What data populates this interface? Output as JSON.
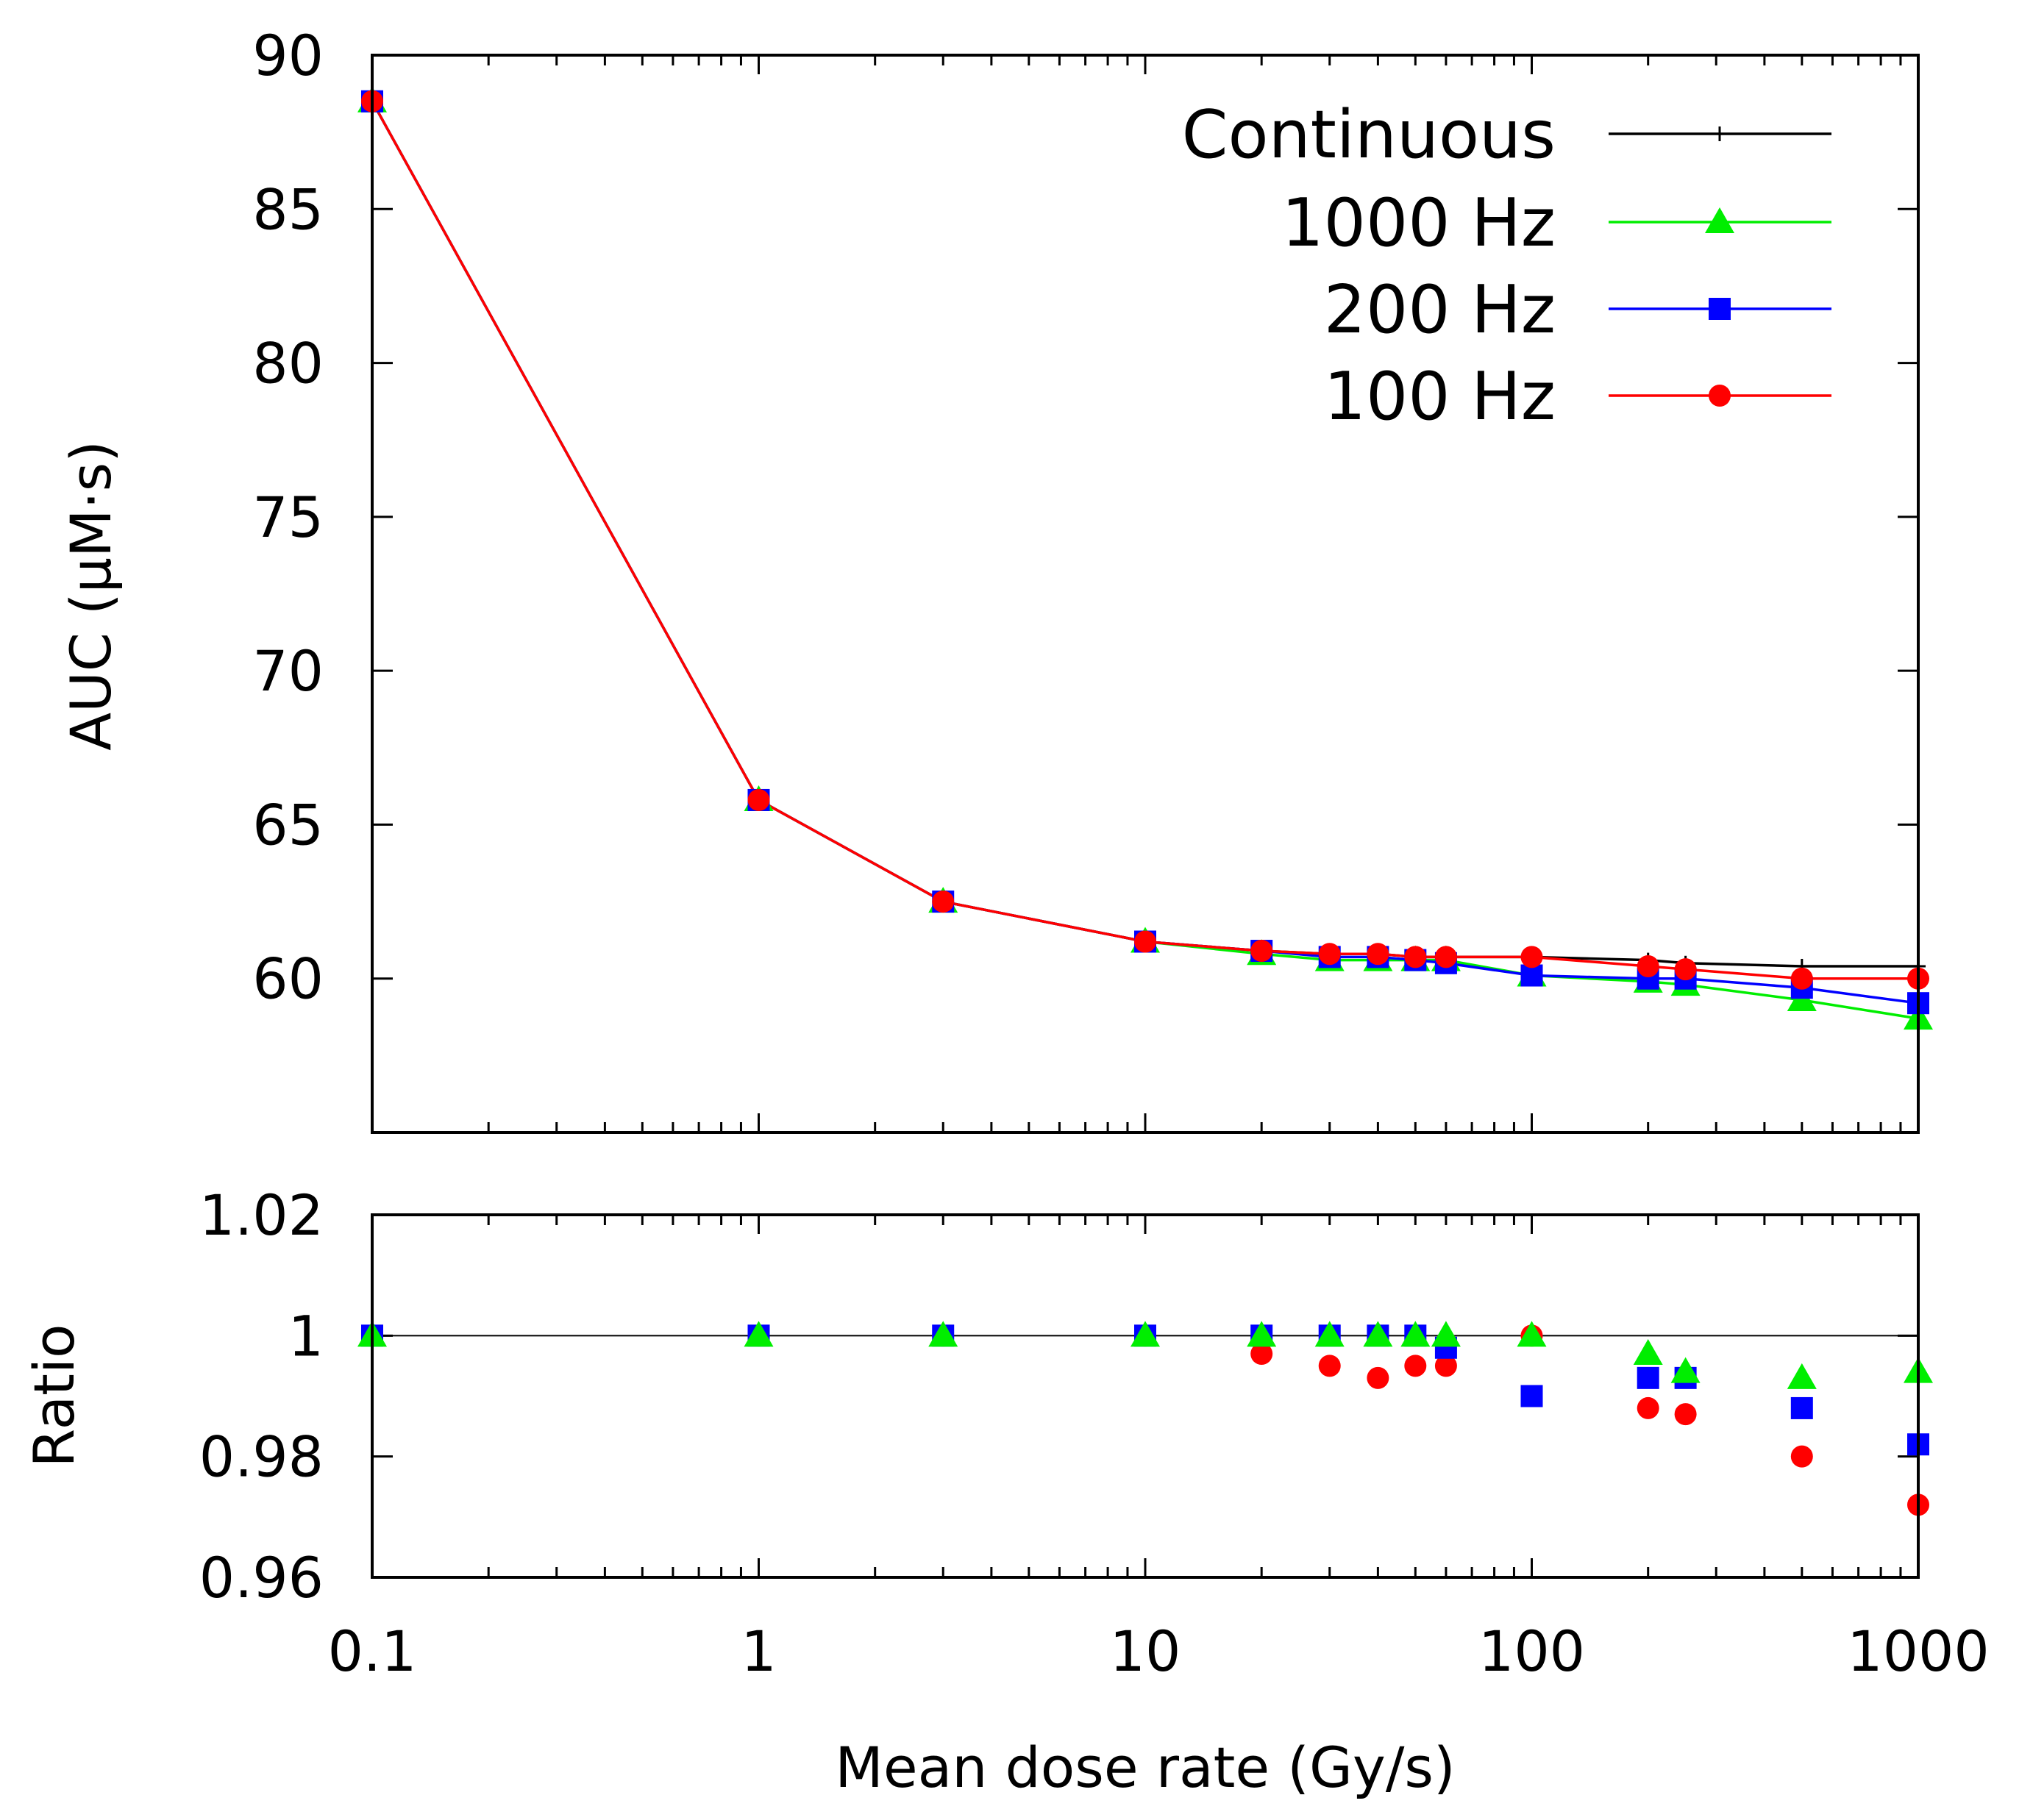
{
  "chart_data": [
    {
      "type": "line",
      "panel": "top",
      "title": "",
      "xlabel": "",
      "ylabel": "AUC (μM·s)",
      "xscale": "log",
      "xlim": [
        0.1,
        1000
      ],
      "ylim": [
        55,
        90
      ],
      "yticks": [
        60,
        65,
        70,
        75,
        80,
        85,
        90
      ],
      "ytick_labels": [
        "60",
        "65",
        "70",
        "75",
        "80",
        "85",
        "90"
      ],
      "legend_position": "top-right",
      "x": [
        0.1,
        1,
        3,
        10,
        20,
        30,
        40,
        50,
        60,
        100,
        200,
        250,
        500,
        1000
      ],
      "series": [
        {
          "name": "Continuous",
          "color": "#000000",
          "marker": "plus",
          "values": [
            88.5,
            65.8,
            62.5,
            61.2,
            60.9,
            60.8,
            60.8,
            60.7,
            60.7,
            60.7,
            60.6,
            60.5,
            60.4,
            60.4
          ]
        },
        {
          "name": "1000 Hz",
          "color": "#00ee00",
          "marker": "triangle",
          "values": [
            88.5,
            65.8,
            62.5,
            61.2,
            60.8,
            60.6,
            60.6,
            60.6,
            60.6,
            60.1,
            59.9,
            59.8,
            59.3,
            58.7
          ]
        },
        {
          "name": "200 Hz",
          "color": "#0000ff",
          "marker": "square",
          "values": [
            88.5,
            65.8,
            62.5,
            61.2,
            60.9,
            60.7,
            60.7,
            60.6,
            60.5,
            60.1,
            60.0,
            60.0,
            59.7,
            59.2
          ]
        },
        {
          "name": "100 Hz",
          "color": "#ff0000",
          "marker": "circle",
          "values": [
            88.5,
            65.8,
            62.5,
            61.2,
            60.9,
            60.8,
            60.8,
            60.7,
            60.7,
            60.7,
            60.4,
            60.3,
            60.0,
            60.0
          ]
        }
      ]
    },
    {
      "type": "scatter",
      "panel": "bottom",
      "title": "",
      "xlabel": "Mean dose rate (Gy/s)",
      "ylabel": "Ratio",
      "xscale": "log",
      "xlim": [
        0.1,
        1000
      ],
      "ylim": [
        0.96,
        1.02
      ],
      "xticks": [
        0.1,
        1,
        10,
        100,
        1000
      ],
      "xtick_labels": [
        "0.1",
        "1",
        "10",
        "100",
        "1000"
      ],
      "yticks": [
        0.96,
        0.98,
        1,
        1.02
      ],
      "ytick_labels": [
        "0.96",
        "0.98",
        "1",
        "1.02"
      ],
      "reference_line": 1,
      "x": [
        0.1,
        1,
        3,
        10,
        20,
        30,
        40,
        50,
        60,
        100,
        200,
        250,
        500,
        1000
      ],
      "series": [
        {
          "name": "1000 Hz",
          "color": "#00ee00",
          "marker": "triangle",
          "values": [
            1.0,
            1.0,
            1.0,
            1.0,
            1.0,
            1.0,
            1.0,
            1.0,
            1.0,
            1.0,
            0.997,
            0.994,
            0.993,
            0.994
          ]
        },
        {
          "name": "200 Hz",
          "color": "#0000ff",
          "marker": "square",
          "values": [
            1.0,
            1.0,
            1.0,
            1.0,
            1.0,
            1.0,
            1.0,
            1.0,
            0.998,
            0.99,
            0.993,
            0.993,
            0.988,
            0.982
          ]
        },
        {
          "name": "100 Hz",
          "color": "#ff0000",
          "marker": "circle",
          "values": [
            1.0,
            1.0,
            1.0,
            1.0,
            0.997,
            0.995,
            0.993,
            0.995,
            0.995,
            1.0,
            0.988,
            0.987,
            0.98,
            0.972
          ]
        }
      ]
    }
  ]
}
